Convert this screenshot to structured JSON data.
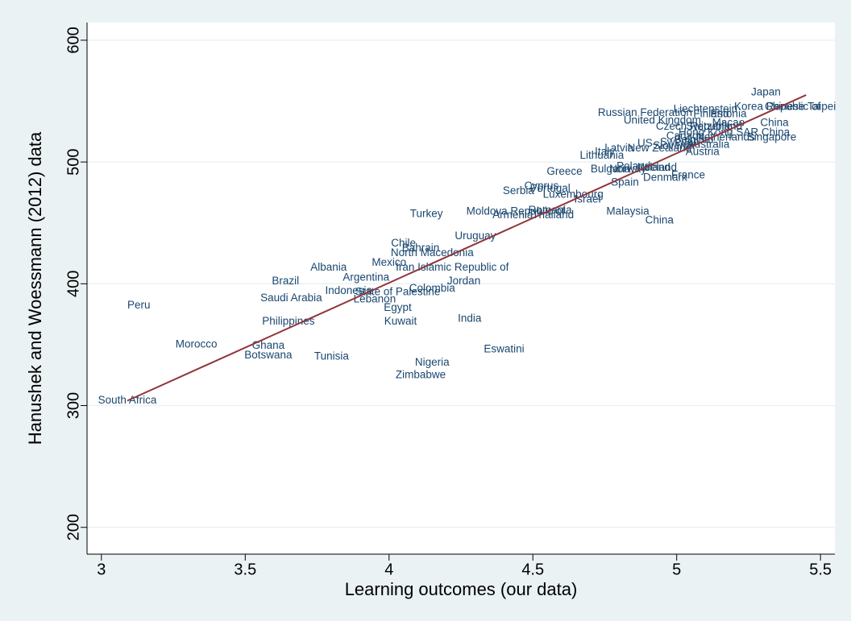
{
  "chart_data": {
    "type": "scatter",
    "x_label": "Learning outcomes (our data)",
    "y_label": "Hanushek and Woessmann (2012) data",
    "labels": [
      "South Africa",
      "Peru",
      "Morocco",
      "Ghana",
      "Botswana",
      "Tunisia",
      "Philippines",
      "Saudi Arabia",
      "Brazil",
      "Albania",
      "Argentina",
      "Indonesia",
      "Lebanon",
      "State of Palestine",
      "Mexico",
      "Iran Islamic Republic of",
      "Chile",
      "Bahrain",
      "North Macedonia",
      "Egypt",
      "Kuwait",
      "Colombia",
      "Jordan",
      "Turkey",
      "Uruguay",
      "India",
      "Nigeria",
      "Zimbabwe",
      "Eswatini",
      "Moldova Republic of",
      "Armenia",
      "Romania",
      "Thailand",
      "Malaysia",
      "China",
      "Greece",
      "Cyprus",
      "Serbia",
      "Portugal",
      "Luxembourg",
      "Israel",
      "Bulgaria",
      "Norway",
      "Poland",
      "Ireland",
      "Iceland",
      "Spain",
      "Denmark",
      "France",
      "Lithuania",
      "Italy",
      "Latvia",
      "US",
      "New Zealand",
      "Slovenia",
      "Austria",
      "Australia",
      "Sweden",
      "Canada",
      "Belgium",
      "Netherlands",
      "Singapore",
      "Hong Kong SAR China",
      "Czech Republic",
      "Switzerland",
      "Macao",
      "China",
      "United Kingdom",
      "Russian Federation",
      "Finland",
      "Estonia",
      "Liechtenstein",
      "Korea Republic of",
      "Chinese Taipei",
      "Japan"
    ],
    "x": [
      3.09,
      3.13,
      3.33,
      3.58,
      3.58,
      3.8,
      3.65,
      3.66,
      3.64,
      3.79,
      3.92,
      3.86,
      3.95,
      4.03,
      4.0,
      4.22,
      4.05,
      4.11,
      4.15,
      4.03,
      4.04,
      4.15,
      4.26,
      4.13,
      4.3,
      4.28,
      4.15,
      4.11,
      4.4,
      4.44,
      4.43,
      4.56,
      4.57,
      4.83,
      4.94,
      4.61,
      4.53,
      4.45,
      4.56,
      4.64,
      4.69,
      4.77,
      4.83,
      4.85,
      4.92,
      4.94,
      4.82,
      4.96,
      5.04,
      4.74,
      4.75,
      4.8,
      4.89,
      4.94,
      4.99,
      5.09,
      5.11,
      5.01,
      5.03,
      5.06,
      5.17,
      5.33,
      5.2,
      5.06,
      5.13,
      5.18,
      5.34,
      4.95,
      4.89,
      5.12,
      5.18,
      5.1,
      5.35,
      5.43,
      5.31
    ],
    "values": [
      304,
      382,
      350,
      349,
      341,
      340,
      369,
      388,
      402,
      413,
      405,
      394,
      387,
      393,
      417,
      413,
      433,
      429,
      425,
      380,
      369,
      396,
      402,
      457,
      439,
      371,
      335,
      325,
      346,
      459,
      456,
      460,
      456,
      459,
      452,
      492,
      480,
      476,
      478,
      473,
      469,
      494,
      494,
      496,
      495,
      495,
      483,
      487,
      489,
      505,
      508,
      511,
      515,
      511,
      513,
      508,
      514,
      516,
      521,
      518,
      520,
      520,
      524,
      529,
      529,
      532,
      532,
      534,
      540,
      539,
      539,
      543,
      545,
      545,
      557
    ],
    "color": "#1a476f",
    "fit_line": {
      "x": [
        3.09,
        5.45
      ],
      "y": [
        304,
        555
      ],
      "color": "#90353b"
    },
    "xlim": [
      2.95,
      5.55
    ],
    "ylim": [
      178,
      614.5
    ],
    "xticks": [
      3,
      3.5,
      4,
      4.5,
      5,
      5.5
    ],
    "yticks": [
      200,
      300,
      400,
      500,
      600
    ],
    "grid": true
  }
}
